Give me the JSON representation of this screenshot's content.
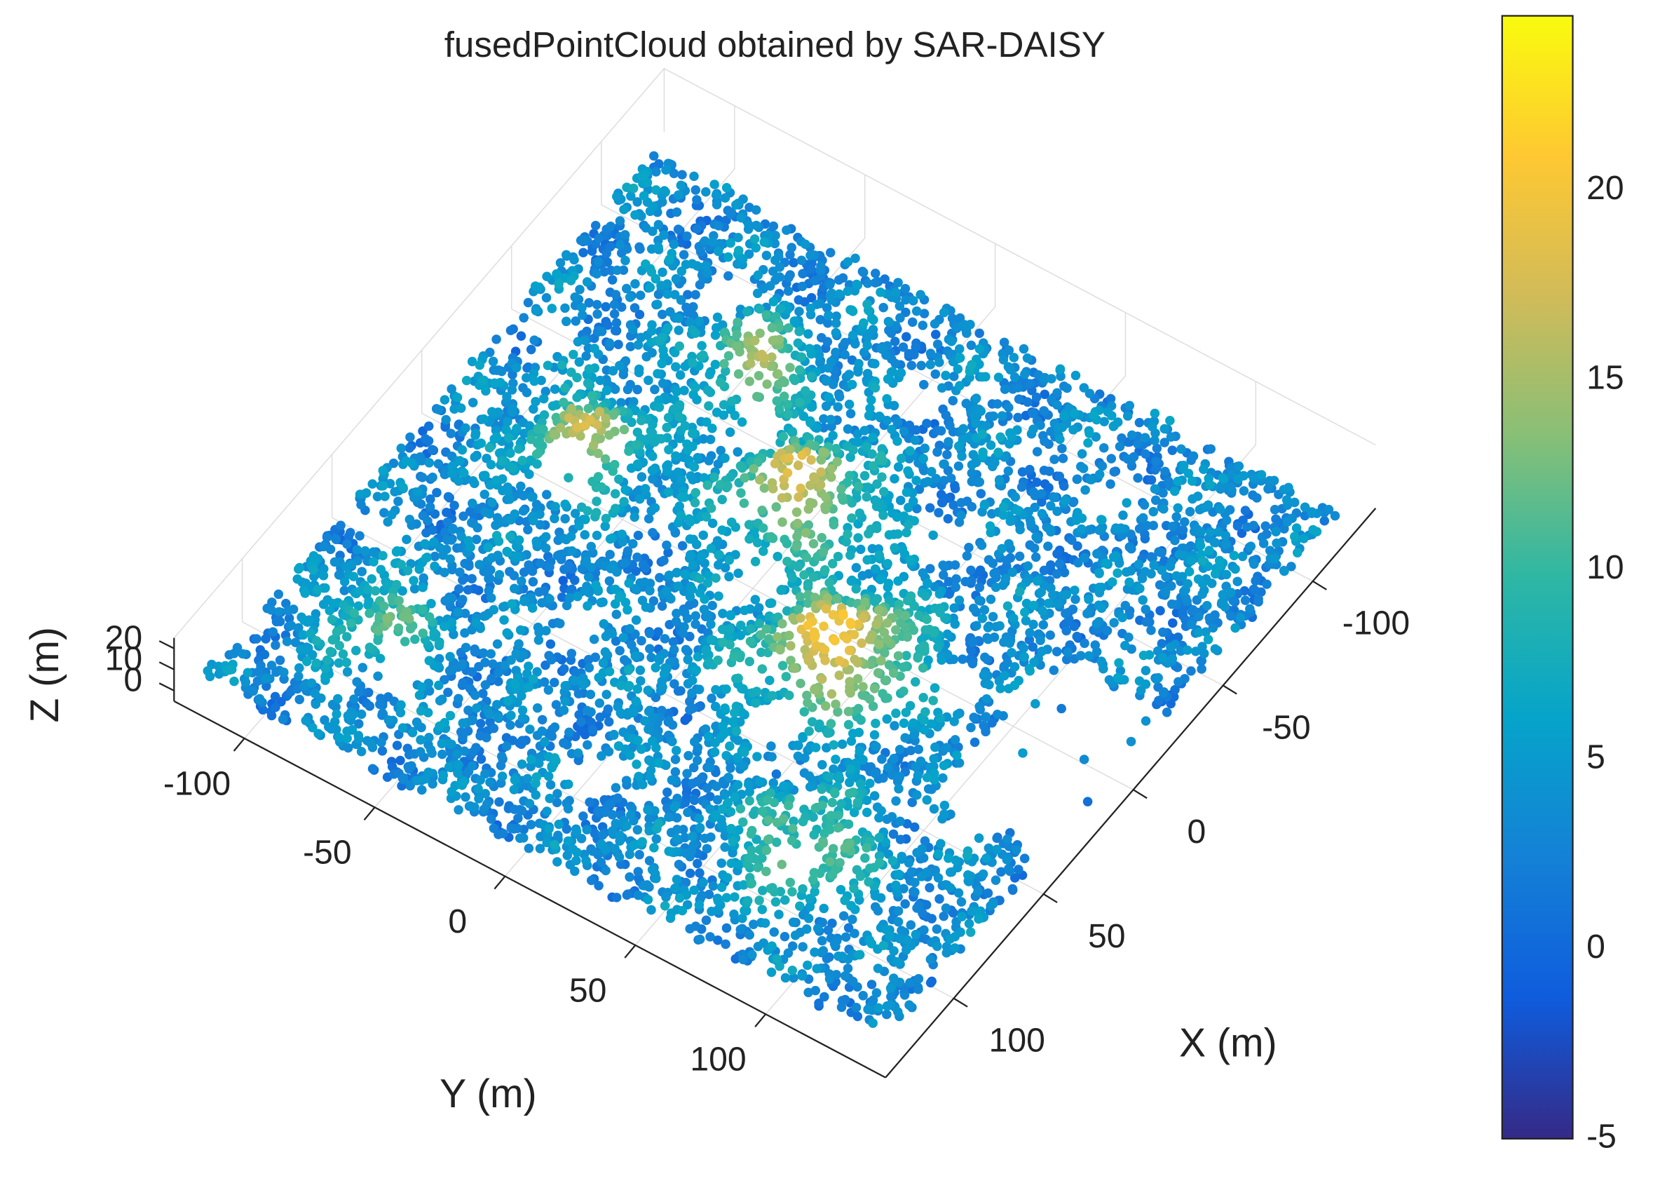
{
  "chart_data": {
    "type": "scatter3d",
    "title": "fusedPointCloud obtained by SAR-DAISY",
    "x_label": "X (m)",
    "y_label": "Y (m)",
    "z_label": "Z (m)",
    "xlim": [
      -135,
      138
    ],
    "xticks": [
      -100,
      -50,
      0,
      50,
      100
    ],
    "ylim": [
      -127,
      146
    ],
    "yticks": [
      -100,
      -50,
      0,
      50,
      100
    ],
    "zlim": [
      -5,
      25
    ],
    "zticks": [
      0,
      10,
      20
    ],
    "colorbar": {
      "clim": [
        -5,
        24.6
      ],
      "ticks": [
        -5,
        0,
        5,
        10,
        15,
        20
      ]
    },
    "grid": true
  }
}
